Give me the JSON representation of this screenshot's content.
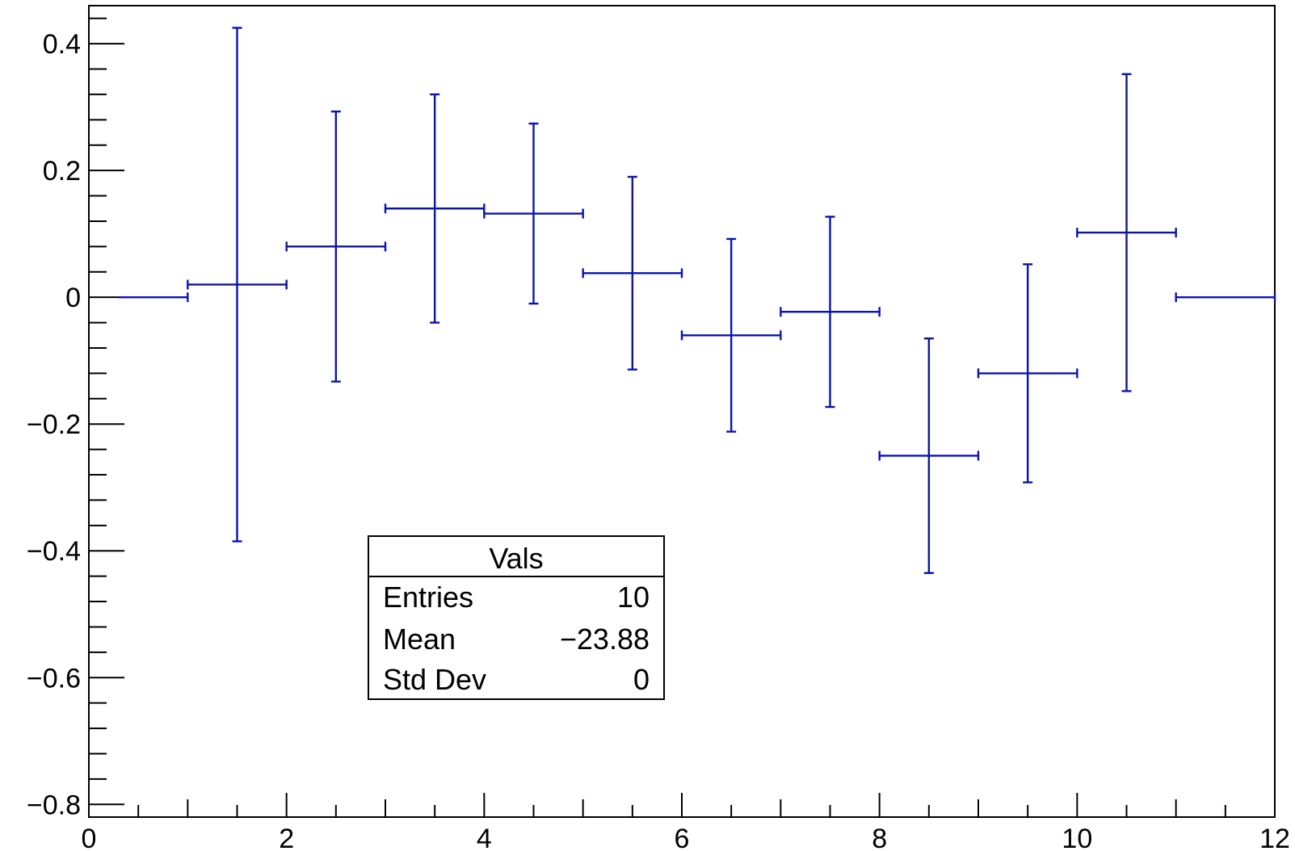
{
  "chart_data": {
    "type": "scatter",
    "x_range": [
      0,
      12
    ],
    "y_range": [
      -0.82,
      0.46
    ],
    "grid": false,
    "x_ticks": [
      "0",
      "2",
      "4",
      "6",
      "8",
      "10",
      "12"
    ],
    "y_ticks": [
      "0.4",
      "0.2",
      "0",
      "−0.2",
      "−0.4",
      "−0.6",
      "−0.8"
    ],
    "bins": [
      {
        "x": 0.5,
        "xlow": 0,
        "xhigh": 1,
        "y": 0,
        "err": 0
      },
      {
        "x": 1.5,
        "xlow": 1,
        "xhigh": 2,
        "y": 0.02,
        "err": 0.405
      },
      {
        "x": 2.5,
        "xlow": 2,
        "xhigh": 3,
        "y": 0.08,
        "err": 0.213
      },
      {
        "x": 3.5,
        "xlow": 3,
        "xhigh": 4,
        "y": 0.14,
        "err": 0.18
      },
      {
        "x": 4.5,
        "xlow": 4,
        "xhigh": 5,
        "y": 0.132,
        "err": 0.142
      },
      {
        "x": 5.5,
        "xlow": 5,
        "xhigh": 6,
        "y": 0.038,
        "err": 0.152
      },
      {
        "x": 6.5,
        "xlow": 6,
        "xhigh": 7,
        "y": -0.06,
        "err": 0.152
      },
      {
        "x": 7.5,
        "xlow": 7,
        "xhigh": 8,
        "y": -0.023,
        "err": 0.15
      },
      {
        "x": 8.5,
        "xlow": 8,
        "xhigh": 9,
        "y": -0.25,
        "err": 0.185
      },
      {
        "x": 9.5,
        "xlow": 9,
        "xhigh": 10,
        "y": -0.12,
        "err": 0.172
      },
      {
        "x": 10.5,
        "xlow": 10,
        "xhigh": 11,
        "y": 0.102,
        "err": 0.25
      },
      {
        "x": 11.5,
        "xlow": 11,
        "xhigh": 12,
        "y": 0,
        "err": 0
      }
    ],
    "series_color": "#0a14a8",
    "stats_box": {
      "title": "Vals",
      "rows": [
        {
          "label": "Entries",
          "value": "10"
        },
        {
          "label": "Mean",
          "value": "−23.88"
        },
        {
          "label": "Std Dev",
          "value": "0"
        }
      ]
    }
  }
}
